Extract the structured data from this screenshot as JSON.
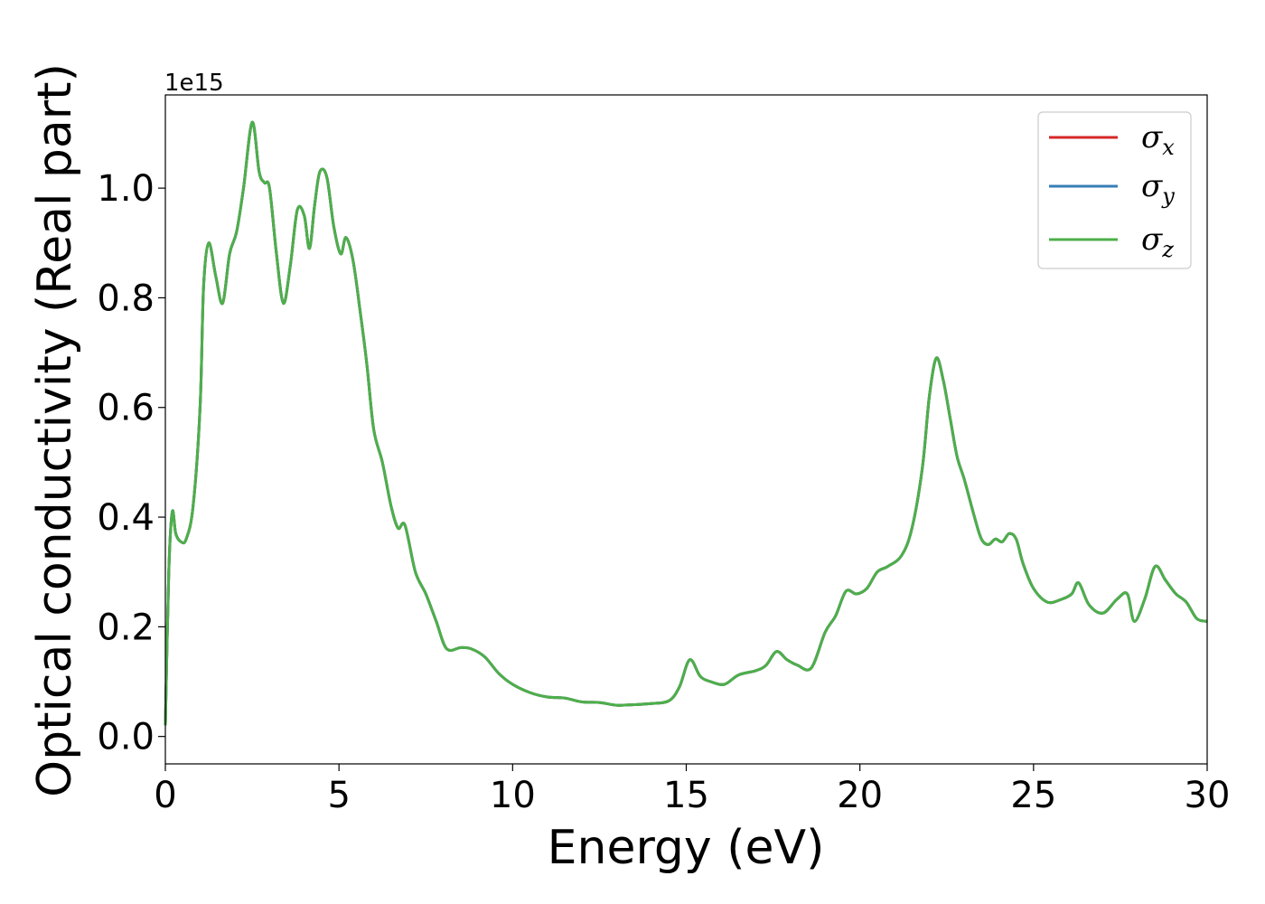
{
  "chart_data": {
    "type": "line",
    "xlabel": "Energy (eV)",
    "ylabel": "Optical conductivity (Real part)",
    "y_offset_text": "1e15",
    "xlim": [
      0,
      30
    ],
    "ylim": [
      -0.05,
      1.17
    ],
    "x_ticks": [
      0,
      5,
      10,
      15,
      20,
      25,
      30
    ],
    "x_tick_labels": [
      "0",
      "5",
      "10",
      "15",
      "20",
      "25",
      "30"
    ],
    "y_ticks": [
      0.0,
      0.2,
      0.4,
      0.6,
      0.8,
      1.0
    ],
    "y_tick_labels": [
      "0.0",
      "0.2",
      "0.4",
      "0.6",
      "0.8",
      "1.0"
    ],
    "grid": false,
    "legend_position": "top-right",
    "series": [
      {
        "name": "σ",
        "sub": "x",
        "color": "#d62728"
      },
      {
        "name": "σ",
        "sub": "y",
        "color": "#377eb8"
      },
      {
        "name": "σ",
        "sub": "z",
        "color": "#4daf4a"
      }
    ],
    "x": [
      0.0,
      0.1,
      0.2,
      0.3,
      0.45,
      0.6,
      0.8,
      1.0,
      1.1,
      1.25,
      1.45,
      1.65,
      1.85,
      2.05,
      2.25,
      2.5,
      2.7,
      2.85,
      3.0,
      3.2,
      3.4,
      3.6,
      3.8,
      4.0,
      4.15,
      4.3,
      4.45,
      4.65,
      4.85,
      5.05,
      5.2,
      5.4,
      5.6,
      5.8,
      6.0,
      6.25,
      6.5,
      6.7,
      6.9,
      7.2,
      7.5,
      7.8,
      8.1,
      8.5,
      8.8,
      9.2,
      9.6,
      10.0,
      10.5,
      11.0,
      11.5,
      12.0,
      12.5,
      13.0,
      13.5,
      14.0,
      14.5,
      14.8,
      15.1,
      15.4,
      15.7,
      16.1,
      16.5,
      17.0,
      17.3,
      17.6,
      17.9,
      18.2,
      18.6,
      19.0,
      19.3,
      19.6,
      19.9,
      20.2,
      20.5,
      20.8,
      21.2,
      21.5,
      21.8,
      22.0,
      22.2,
      22.4,
      22.6,
      22.8,
      23.0,
      23.3,
      23.5,
      23.7,
      23.9,
      24.1,
      24.3,
      24.5,
      24.7,
      25.0,
      25.4,
      25.8,
      26.1,
      26.3,
      26.6,
      27.0,
      27.4,
      27.7,
      27.9,
      28.2,
      28.5,
      28.8,
      29.1,
      29.4,
      29.7,
      30.0
    ],
    "values": [
      0.02,
      0.3,
      0.41,
      0.37,
      0.355,
      0.36,
      0.42,
      0.6,
      0.82,
      0.9,
      0.84,
      0.79,
      0.88,
      0.92,
      1.0,
      1.12,
      1.03,
      1.01,
      1.0,
      0.88,
      0.79,
      0.86,
      0.96,
      0.95,
      0.89,
      0.97,
      1.03,
      1.02,
      0.93,
      0.88,
      0.91,
      0.87,
      0.78,
      0.68,
      0.56,
      0.5,
      0.42,
      0.38,
      0.385,
      0.3,
      0.26,
      0.21,
      0.16,
      0.162,
      0.16,
      0.145,
      0.115,
      0.095,
      0.08,
      0.072,
      0.07,
      0.063,
      0.062,
      0.057,
      0.058,
      0.06,
      0.065,
      0.09,
      0.14,
      0.11,
      0.1,
      0.095,
      0.112,
      0.12,
      0.13,
      0.155,
      0.14,
      0.13,
      0.125,
      0.19,
      0.22,
      0.265,
      0.26,
      0.27,
      0.3,
      0.31,
      0.33,
      0.38,
      0.49,
      0.62,
      0.69,
      0.65,
      0.58,
      0.51,
      0.47,
      0.4,
      0.36,
      0.35,
      0.36,
      0.355,
      0.37,
      0.36,
      0.315,
      0.27,
      0.245,
      0.25,
      0.26,
      0.28,
      0.24,
      0.225,
      0.25,
      0.26,
      0.21,
      0.25,
      0.31,
      0.285,
      0.26,
      0.245,
      0.215,
      0.21
    ]
  }
}
